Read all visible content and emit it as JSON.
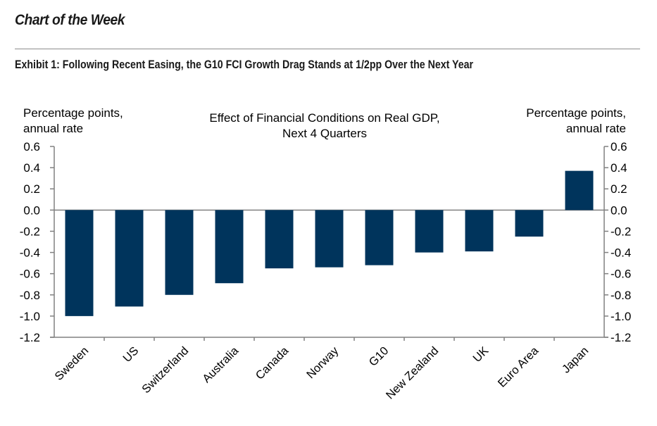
{
  "header": {
    "section_title": "Chart of the Week",
    "exhibit_title": "Exhibit 1: Following Recent Easing, the G10 FCI Growth Drag Stands at 1/2pp Over the Next Year"
  },
  "colors": {
    "bar": "#00345c",
    "axis": "#808080",
    "text": "#000000"
  },
  "chart_data": {
    "type": "bar",
    "title": "Effect of Financial Conditions on Real GDP, Next 4 Quarters",
    "title_lines": [
      "Effect of Financial Conditions on Real GDP,",
      "Next 4 Quarters"
    ],
    "ylabel_left_lines": [
      "Percentage points,",
      "annual rate"
    ],
    "ylabel_right_lines": [
      "Percentage points,",
      "annual rate"
    ],
    "xlabel": "",
    "categories": [
      "Sweden",
      "US",
      "Switzerland",
      "Australia",
      "Canada",
      "Norway",
      "G10",
      "New Zealand",
      "UK",
      "Euro Area",
      "Japan"
    ],
    "values": [
      -1.0,
      -0.91,
      -0.8,
      -0.69,
      -0.55,
      -0.54,
      -0.52,
      -0.4,
      -0.39,
      -0.25,
      0.37
    ],
    "ylim": [
      -1.2,
      0.6
    ],
    "yticks": [
      0.6,
      0.4,
      0.2,
      0.0,
      -0.2,
      -0.4,
      -0.6,
      -0.8,
      -1.0,
      -1.2
    ],
    "ytick_labels": [
      "0.6",
      "0.4",
      "0.2",
      "0.0",
      "-0.2",
      "-0.4",
      "-0.6",
      "-0.8",
      "-1.0",
      "-1.2"
    ],
    "grid": false,
    "legend": "none",
    "dual_y_axis": true
  }
}
